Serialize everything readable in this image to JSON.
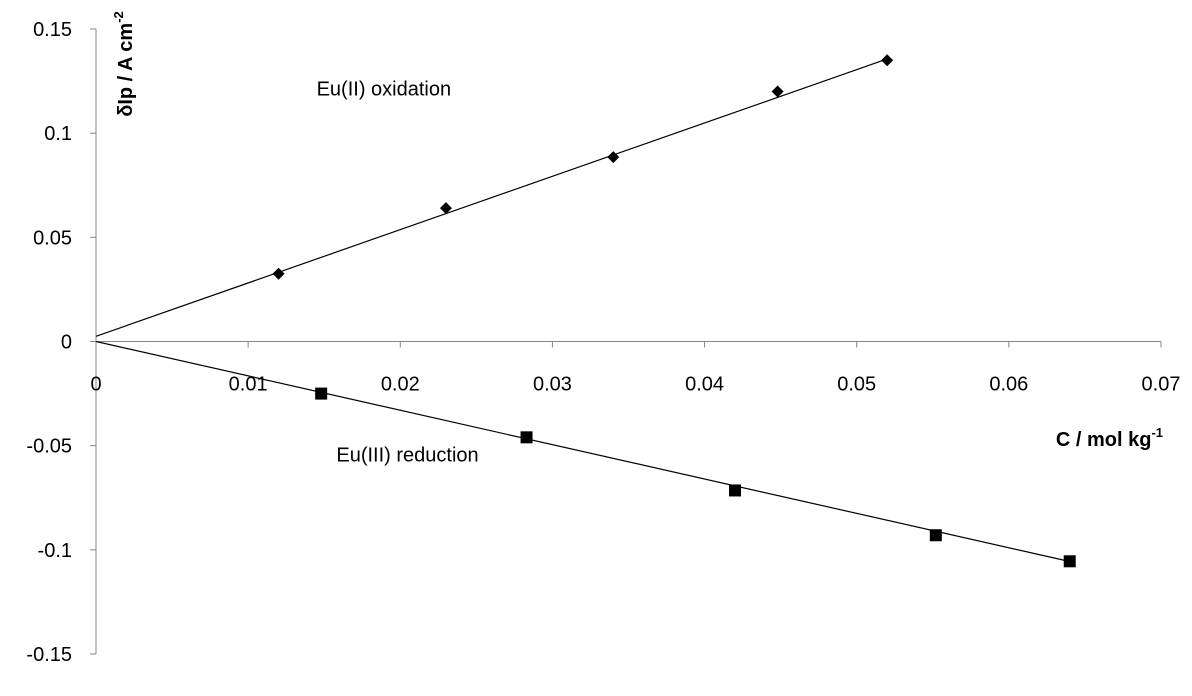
{
  "chart_data": {
    "type": "scatter",
    "title": "",
    "xlabel": "C / mol kg",
    "xlabel_sup": "-1",
    "ylabel": "δIp / A cm",
    "ylabel_sup": "-2",
    "xlim": [
      0,
      0.07
    ],
    "ylim": [
      -0.15,
      0.15
    ],
    "x_ticks": [
      0,
      0.01,
      0.02,
      0.03,
      0.04,
      0.05,
      0.06,
      0.07
    ],
    "x_tick_labels": [
      "0",
      "0.01",
      "0.02",
      "0.03",
      "0.04",
      "0.05",
      "0.06",
      "0.07"
    ],
    "y_ticks": [
      -0.15,
      -0.1,
      -0.05,
      0,
      0.05,
      0.1,
      0.15
    ],
    "y_tick_labels": [
      "-0.15",
      "-0.1",
      "-0.05",
      "0",
      "0.05",
      "0.1",
      "0.15"
    ],
    "grid": false,
    "legend": "none",
    "series": [
      {
        "marker": "diamond",
        "color": "#000000",
        "x": [
          0.012,
          0.023,
          0.034,
          0.0448,
          0.052
        ],
        "y": [
          0.0325,
          0.064,
          0.0885,
          0.12,
          0.135
        ],
        "fit": {
          "slope": 2.56,
          "intercept": 0.0025,
          "x_range": [
            0,
            0.052
          ]
        }
      },
      {
        "marker": "square",
        "color": "#000000",
        "x": [
          0.0148,
          0.0283,
          0.042,
          0.0552,
          0.064
        ],
        "y": [
          -0.025,
          -0.046,
          -0.0715,
          -0.093,
          -0.1055
        ],
        "fit": {
          "slope": -1.65,
          "intercept": 0.0,
          "x_range": [
            0,
            0.064
          ]
        }
      }
    ],
    "annotations": [
      {
        "text": "Eu(II) oxidation",
        "x": 0.0145,
        "y": 0.118
      },
      {
        "text": "Eu(III) reduction",
        "x": 0.0158,
        "y": -0.0575
      }
    ]
  }
}
